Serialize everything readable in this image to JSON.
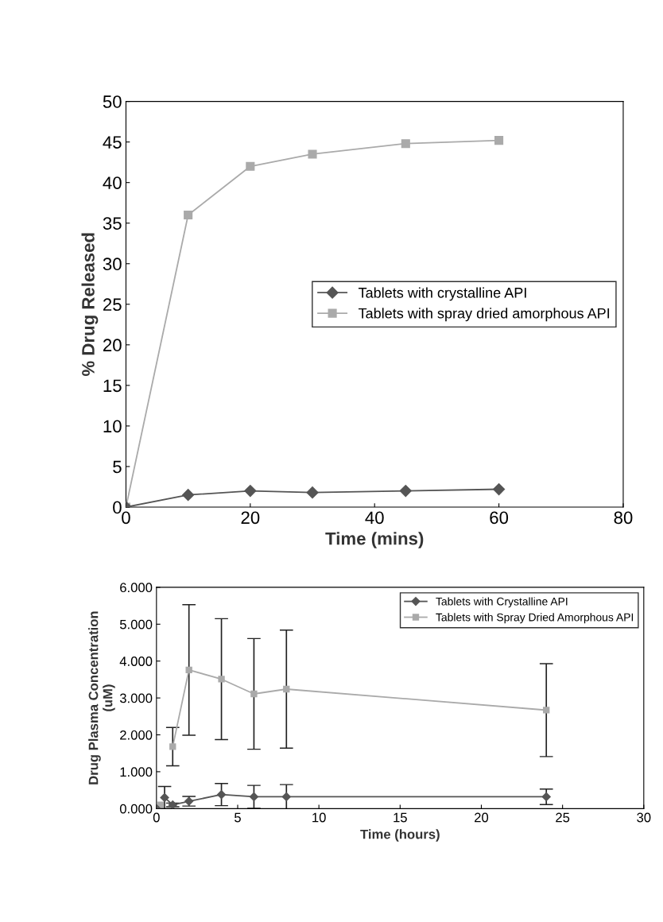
{
  "chart_data": [
    {
      "type": "line",
      "xlabel": "Time (mins)",
      "ylabel": "% Drug Released",
      "xlim": [
        0,
        80
      ],
      "ylim": [
        0,
        50
      ],
      "xticks": [
        0,
        20,
        40,
        60,
        80
      ],
      "yticks": [
        0,
        5,
        10,
        15,
        20,
        25,
        30,
        35,
        40,
        45,
        50
      ],
      "legend": "right",
      "grid": false,
      "series": [
        {
          "name": "Tablets with crystalline API",
          "color": "#555555",
          "marker": "diamond",
          "x": [
            0,
            10,
            20,
            30,
            45,
            60
          ],
          "values": [
            0,
            1.5,
            2,
            1.8,
            2,
            2.2
          ]
        },
        {
          "name": "Tablets with spray dried amorphous API",
          "color": "#aaaaaa",
          "marker": "square",
          "x": [
            0,
            10,
            20,
            30,
            45,
            60
          ],
          "values": [
            0,
            36,
            42,
            43.5,
            44.8,
            45.2
          ]
        }
      ]
    },
    {
      "type": "line",
      "xlabel": "Time (hours)",
      "ylabel": "Drug Plasma Concentration\n(uM)",
      "xlim": [
        0,
        30
      ],
      "ylim": [
        0,
        6
      ],
      "xticks": [
        0,
        5,
        10,
        15,
        20,
        25,
        30
      ],
      "yticks": [
        {
          "value": 0,
          "label": "0.000"
        },
        {
          "value": 1,
          "label": "1.000"
        },
        {
          "value": 2,
          "label": "2.000"
        },
        {
          "value": 3,
          "label": "3.000"
        },
        {
          "value": 4,
          "label": "4.000"
        },
        {
          "value": 5,
          "label": "5.000"
        },
        {
          "value": 6,
          "label": "6.000"
        }
      ],
      "legend": "top right",
      "grid": false,
      "series": [
        {
          "name": "Tablets with Crystalline API",
          "color": "#555555",
          "marker": "diamond",
          "x": [
            0,
            0.25,
            0.5,
            1,
            2,
            4,
            6,
            8,
            24
          ],
          "values": [
            0,
            null,
            0.3,
            0.1,
            0.2,
            0.38,
            0.32,
            0.32,
            0.32
          ],
          "errors": [
            null,
            null,
            0.3,
            0.05,
            0.13,
            0.3,
            0.31,
            0.33,
            0.21
          ]
        },
        {
          "name": "Tablets with Spray Dried Amorphous API",
          "color": "#aaaaaa",
          "marker": "square",
          "x": [
            0,
            0.25,
            0.5,
            1,
            2,
            4,
            6,
            8,
            24
          ],
          "values": [
            0,
            0.1,
            null,
            1.68,
            3.76,
            3.51,
            3.11,
            3.24,
            2.67
          ],
          "errors": [
            null,
            null,
            null,
            0.52,
            1.77,
            1.64,
            1.5,
            1.6,
            1.26
          ]
        }
      ]
    }
  ]
}
